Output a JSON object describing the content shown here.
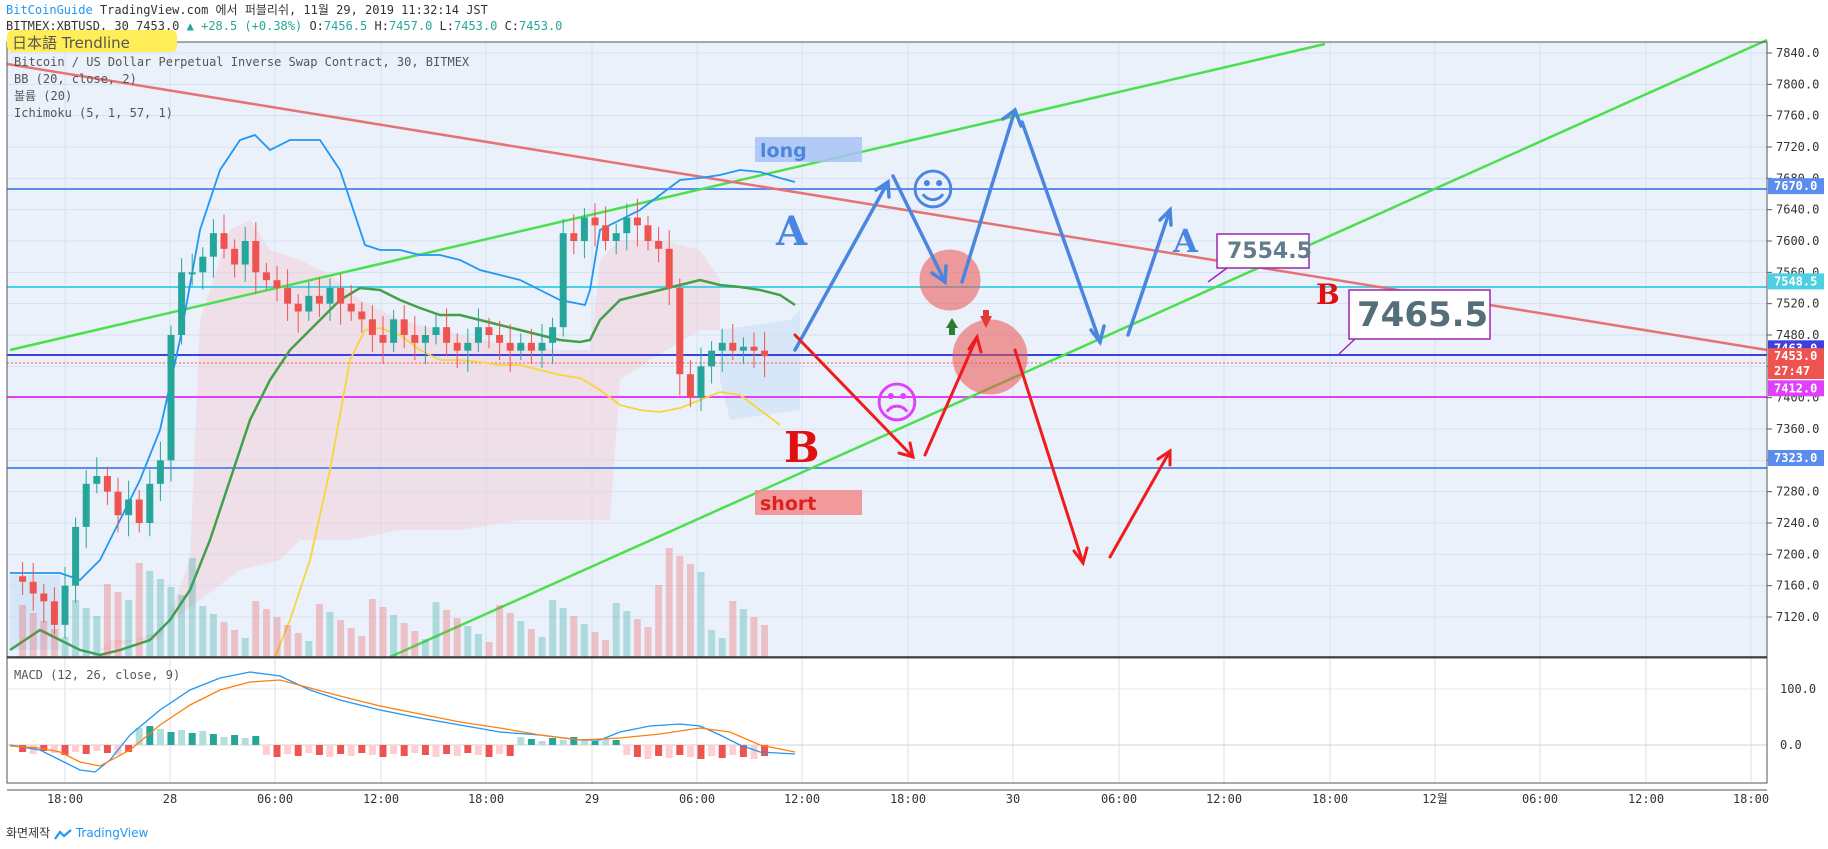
{
  "header": {
    "line1_brand": "BitCoinGuide",
    "line1_rest": " TradingView.com 에서 퍼블리쉬, 11월 29, 2019 11:32:14 JST",
    "line2_symbol": "BITMEX:XBTUSD, 30 7453.0",
    "line2_change": "▲ +28.5 (+0.38%)",
    "line2_o_label": " O:",
    "line2_o": "7456.5",
    "line2_h_label": " H:",
    "line2_h": "7457.0",
    "line2_l_label": " L:",
    "line2_l": "7453.0",
    "line2_c_label": " C:",
    "line2_c": "7453.0"
  },
  "legend": {
    "banner": "日本語 Trendline",
    "title": "Bitcoin / US Dollar Perpetual Inverse Swap Contract, 30, BITMEX",
    "bb": "BB (20, close, 2)",
    "volume": "볼륨 (20)",
    "ichimoku": "Ichimoku (5, 1, 57, 1)",
    "macd": "MACD (12, 26, close, 9)"
  },
  "footer": {
    "prefix": "화면제작",
    "brand": "TradingView"
  },
  "annotations": {
    "long": "long",
    "short": "short",
    "A1": "A",
    "B1": "B",
    "A2": "A",
    "B2": "B",
    "callout1": "7554.5",
    "callout2": "7465.5",
    "smile": "☺",
    "frown": "☹"
  },
  "colors": {
    "background": "#e8f0fb",
    "up": "#26a69a",
    "down": "#ef5350",
    "bb": "#2196f3",
    "trend_green": "#4cdf4c",
    "trend_red": "#e57373",
    "arrow_blue": "#4a86e0",
    "arrow_red": "#ee1c1c"
  },
  "chart_data": {
    "type": "candlestick",
    "y_axis_ticks": [
      7120,
      7160,
      7200,
      7240,
      7280,
      7320,
      7360,
      7400,
      7440,
      7480,
      7520,
      7560,
      7600,
      7640,
      7680,
      7720,
      7760,
      7800,
      7840
    ],
    "x_axis_ticks": [
      "18:00",
      "28",
      "06:00",
      "12:00",
      "18:00",
      "29",
      "06:00",
      "12:00",
      "18:00",
      "30",
      "06:00",
      "12:00",
      "18:00",
      "12월",
      "06:00",
      "12:00",
      "18:00"
    ],
    "price_labels": [
      {
        "value": 7670.0,
        "text": "7670.0",
        "color": "#5b8def"
      },
      {
        "value": 7548.5,
        "text": "7548.5",
        "color": "#4dd0e1"
      },
      {
        "value": 7463.0,
        "text": "7463.0",
        "color": "#3f3fdf"
      },
      {
        "value": 7453.0,
        "text": "7453.0",
        "color": "#ef5350"
      },
      {
        "value": 7434.0,
        "text": "27:47",
        "color": "#ef5350"
      },
      {
        "value": 7412.0,
        "text": "7412.0",
        "color": "#e040fb"
      },
      {
        "value": 7323.0,
        "text": "7323.0",
        "color": "#5b8def"
      }
    ],
    "macd_ticks": [
      100.0,
      0.0
    ],
    "macd_tick_labels": [
      "100.0",
      "0.0"
    ],
    "candles_approx": [
      7172,
      7165,
      7150,
      7140,
      7110,
      7160,
      7235,
      7290,
      7300,
      7280,
      7250,
      7270,
      7240,
      7290,
      7320,
      7480,
      7560,
      7560,
      7580,
      7610,
      7590,
      7570,
      7600,
      7560,
      7550,
      7540,
      7520,
      7510,
      7530,
      7520,
      7540,
      7520,
      7510,
      7500,
      7480,
      7470,
      7500,
      7480,
      7470,
      7480,
      7490,
      7470,
      7460,
      7470,
      7490,
      7480,
      7470,
      7460,
      7470,
      7460,
      7470,
      7490,
      7610,
      7600,
      7630,
      7620,
      7600,
      7610,
      7630,
      7620,
      7600,
      7590,
      7540,
      7430,
      7400,
      7440,
      7460,
      7470,
      7460,
      7465,
      7460,
      7453
    ]
  }
}
